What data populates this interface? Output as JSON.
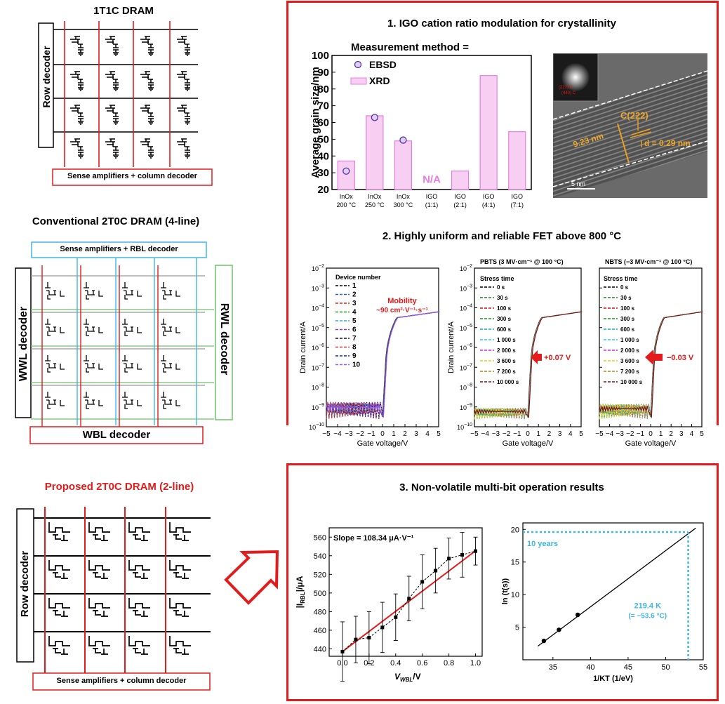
{
  "left": {
    "dram1": {
      "title": "1T1C DRAM",
      "row_decoder": "Row decoder",
      "bottom_bar": "Sense amplifiers + column decoder"
    },
    "dram2": {
      "title": "Conventional 2T0C DRAM (4-line)",
      "top_bar": "Sense amplifiers + RBL decoder",
      "left_decoder": "WWL decoder",
      "right_decoder": "RWL decoder",
      "bottom_bar": "WBL decoder"
    },
    "dram3": {
      "title": "Proposed 2T0C DRAM (2-line)",
      "row_decoder": "Row decoder",
      "bottom_bar": "Sense amplifiers + column decoder"
    }
  },
  "colors": {
    "accent_red": "#e31b1b",
    "blue": "#41b6e6",
    "green": "#6dc36a",
    "pink": "#e87ee0",
    "purple": "#5b2fa8"
  },
  "section1": {
    "title": "1. IGO cation ratio modulation for crystallinity",
    "chart_data": {
      "type": "bar",
      "legend_title": "Measurement method =",
      "legend": [
        "EBSD",
        "XRD"
      ],
      "ylabel": "Average grain size/nm",
      "ylim": [
        20,
        100
      ],
      "yticks": [
        20,
        30,
        40,
        50,
        60,
        70,
        80,
        90,
        100
      ],
      "categories": [
        [
          "InOx",
          "200 °C"
        ],
        [
          "InOx",
          "250 °C"
        ],
        [
          "InOx",
          "300 °C"
        ],
        [
          "IGO",
          "(1:1)"
        ],
        [
          "IGO",
          "(2:1)"
        ],
        [
          "IGO",
          "(4:1)"
        ],
        [
          "IGO",
          "(7:1)"
        ]
      ],
      "series": [
        {
          "name": "XRD",
          "values": [
            37,
            64,
            49,
            null,
            31,
            88,
            54.5
          ]
        },
        {
          "name": "EBSD",
          "values": [
            31,
            63,
            49.5,
            null,
            null,
            null,
            null
          ]
        }
      ],
      "na_label": "N/A"
    },
    "tem": {
      "inset_label": "(222) C\n(440) C",
      "thickness": "9.23 nm",
      "plane": "C(222)",
      "spacing": "d = 0.29 nm",
      "scale": "5 nm"
    }
  },
  "section2": {
    "title": "2. Highly uniform and reliable FET above 800 °C",
    "chart_data": [
      {
        "type": "line",
        "xlabel": "Gate voltage/V",
        "ylabel": "Drain current/A",
        "xlim": [
          -5,
          5
        ],
        "ylim_log": [
          -10,
          -2
        ],
        "xticks": [
          "−5",
          "−4",
          "−3",
          "−2",
          "−1",
          "0",
          "1",
          "2",
          "3",
          "4",
          "5"
        ],
        "legend_title": "Device number",
        "series_names": [
          "1",
          "2",
          "3",
          "4",
          "5",
          "6",
          "7",
          "8",
          "9",
          "10"
        ],
        "annotation": "Mobility\n~90 cm²·V⁻¹·s⁻¹"
      },
      {
        "type": "line",
        "title": "PBTS (3 MV·cm⁻¹ @ 100 °C)",
        "xlabel": "Gate voltage/V",
        "ylabel": "Drain current/A",
        "xlim": [
          -5,
          5
        ],
        "ylim_log": [
          -10,
          -2
        ],
        "legend_title": "Stress time",
        "series_names": [
          "0 s",
          "30 s",
          "100 s",
          "300 s",
          "600 s",
          "1 000 s",
          "2 000 s",
          "3 600 s",
          "7 200 s",
          "10 000 s"
        ],
        "annotation": "+0.07 V"
      },
      {
        "type": "line",
        "title": "NBTS (−3 MV·cm⁻¹ @ 100 °C)",
        "xlabel": "Gate voltage/V",
        "xlim": [
          -5,
          5
        ],
        "ylim_log": [
          -10,
          -2
        ],
        "legend_title": "Stress time",
        "series_names": [
          "0 s",
          "30 s",
          "100 s",
          "300 s",
          "600 s",
          "1 000 s",
          "2 000 s",
          "3 600 s",
          "7 200 s",
          "10 000 s"
        ],
        "annotation": "−0.03 V"
      }
    ]
  },
  "section3": {
    "title": "3. Non-volatile multi-bit operation results",
    "chart_data": [
      {
        "type": "line",
        "annotation": "Slope = 108.34 μA·V⁻¹",
        "xlabel": "V_WBL/V",
        "ylabel": "|I_RBL|/μA",
        "xlim": [
          -0.1,
          1.05
        ],
        "ylim": [
          432,
          570
        ],
        "xticks": [
          0.0,
          0.2,
          0.4,
          0.6,
          0.8,
          1.0
        ],
        "yticks": [
          440,
          460,
          480,
          500,
          520,
          540,
          560
        ],
        "x": [
          0.0,
          0.1,
          0.2,
          0.3,
          0.4,
          0.5,
          0.6,
          0.7,
          0.8,
          0.9,
          1.0
        ],
        "y": [
          437,
          450,
          452,
          463,
          474,
          494,
          512,
          524,
          537,
          541,
          545
        ],
        "err": [
          32,
          25,
          28,
          27,
          25,
          24,
          29,
          24,
          22,
          24,
          15
        ],
        "fit": {
          "slope": 108.34,
          "y0": 437,
          "y1": 545.3
        }
      },
      {
        "type": "line",
        "xlabel": "1/KT (1/eV)",
        "ylabel": "ln (t(s))",
        "xlim": [
          31,
          55
        ],
        "ylim": [
          0,
          21
        ],
        "xticks": [
          35,
          40,
          45,
          50,
          55
        ],
        "yticks": [
          5,
          10,
          15,
          20
        ],
        "points_x": [
          33.8,
          35.8,
          38.3
        ],
        "points_y": [
          2.9,
          4.6,
          6.9
        ],
        "line": {
          "x0": 33.0,
          "y0": 2.1,
          "x1": 54.0,
          "y1": 20.2
        },
        "target": {
          "x": 53.0,
          "y": 19.6
        },
        "label_years": "10 years",
        "label_temp": "219.4 K",
        "label_temp_c": "(= −53.6 °C)"
      }
    ]
  }
}
